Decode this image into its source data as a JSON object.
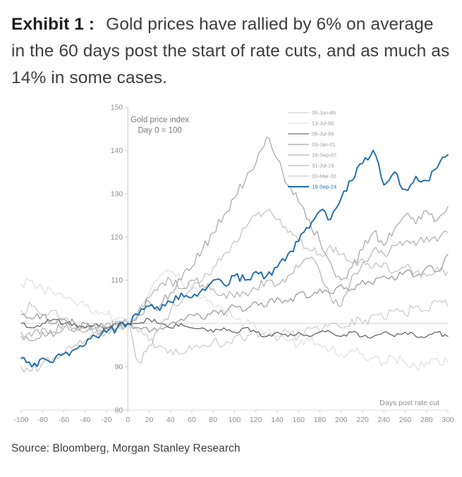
{
  "header": {
    "exhibit_label": "Exhibit 1 :",
    "title_text": "Gold prices have rallied by 6% on average in the 60 days post the start of rate cuts, and as much as 14% in some cases."
  },
  "footer": {
    "source": "Source: Bloomberg, Morgan Stanley Research"
  },
  "chart_data": {
    "type": "line",
    "annotation": [
      "Gold price index",
      "Day 0 = 100"
    ],
    "xlabel": "Days post rate cut",
    "ylabel": "",
    "xlim": [
      -100,
      300
    ],
    "ylim": [
      80,
      150
    ],
    "x_ticks": [
      -100,
      -80,
      -60,
      -40,
      -20,
      0,
      20,
      40,
      60,
      80,
      100,
      120,
      140,
      160,
      180,
      200,
      220,
      240,
      260,
      280,
      300
    ],
    "y_ticks": [
      80,
      90,
      100,
      110,
      120,
      130,
      140,
      150
    ],
    "x_start": -100,
    "x_step": 10,
    "grid": "horizontal reference line at y=100, vertical axis at x=0, baseline at y=80",
    "legend_position": "top-right-inside",
    "axis_color": "#c8c8c8",
    "tick_label_color": "#8e8e8e",
    "series": [
      {
        "name": "05-Jun-89",
        "color": "#c6c6c6",
        "width": 1.1,
        "jitter": 1.2,
        "values": [
          103,
          104,
          102,
          103,
          101,
          100,
          99,
          98,
          99,
          100,
          100,
          98,
          96,
          95,
          94,
          93,
          94,
          95,
          96,
          95,
          97,
          96,
          98,
          97,
          96,
          98,
          97,
          99,
          98,
          100,
          99,
          101,
          100,
          102,
          101,
          103,
          102,
          104,
          103,
          105,
          104
        ]
      },
      {
        "name": "13-Jul-90",
        "color": "#dddddd",
        "width": 1.1,
        "jitter": 1.2,
        "values": [
          109,
          110,
          108,
          107,
          106,
          105,
          104,
          103,
          102,
          101,
          100,
          103,
          107,
          111,
          112,
          110,
          108,
          106,
          104,
          103,
          101,
          100,
          99,
          98,
          97,
          96,
          95,
          96,
          95,
          94,
          93,
          94,
          93,
          92,
          91,
          92,
          91,
          90,
          91,
          92,
          91
        ]
      },
      {
        "name": "06-Jul-95",
        "color": "#4d4d4d",
        "width": 1.1,
        "jitter": 0.5,
        "values": [
          100,
          99,
          100,
          101,
          100,
          100,
          99,
          100,
          99,
          100,
          100,
          100,
          101,
          100,
          99,
          100,
          99,
          99,
          98,
          99,
          98,
          99,
          98,
          97,
          98,
          97,
          98,
          97,
          98,
          98,
          97,
          98,
          97,
          97,
          98,
          97,
          98,
          97,
          97,
          98,
          97
        ]
      },
      {
        "name": "03-Jan-01",
        "color": "#8c8c8c",
        "width": 1.1,
        "jitter": 0.9,
        "values": [
          102,
          101,
          102,
          100,
          101,
          100,
          99,
          100,
          99,
          100,
          100,
          99,
          98,
          99,
          100,
          101,
          102,
          101,
          103,
          102,
          104,
          103,
          105,
          104,
          106,
          105,
          107,
          106,
          108,
          107,
          109,
          108,
          110,
          109,
          111,
          110,
          112,
          111,
          113,
          112,
          116
        ]
      },
      {
        "name": "18-Sep-07",
        "color": "#9e9e9e",
        "width": 1.1,
        "jitter": 1.3,
        "values": [
          97,
          96,
          98,
          97,
          99,
          98,
          100,
          99,
          98,
          99,
          100,
          102,
          105,
          104,
          107,
          110,
          113,
          117,
          121,
          125,
          129,
          133,
          137,
          143,
          138,
          132,
          128,
          124,
          119,
          114,
          110,
          113,
          117,
          121,
          118,
          122,
          125,
          123,
          126,
          124,
          127
        ]
      },
      {
        "name": "31-Jul-19",
        "color": "#a9a9a9",
        "width": 1.1,
        "jitter": 1.1,
        "values": [
          98,
          97,
          99,
          98,
          100,
          99,
          98,
          99,
          100,
          99,
          100,
          103,
          106,
          109,
          110,
          108,
          110,
          109,
          108,
          107,
          106,
          107,
          108,
          110,
          109,
          111,
          113,
          115,
          112,
          106,
          104,
          111,
          114,
          117,
          116,
          118,
          119,
          118,
          120,
          119,
          121
        ]
      },
      {
        "name": "03-Mar-20",
        "color": "#bdbdbd",
        "width": 1.1,
        "jitter": 1.2,
        "values": [
          90,
          89,
          91,
          92,
          93,
          95,
          96,
          97,
          98,
          99,
          100,
          91,
          95,
          99,
          103,
          105,
          108,
          110,
          113,
          116,
          119,
          122,
          125,
          126,
          124,
          121,
          119,
          117,
          116,
          118,
          116,
          114,
          115,
          113,
          114,
          112,
          113,
          112,
          111,
          113,
          112
        ]
      },
      {
        "name": "18-Sep-24",
        "color": "#1f6cab",
        "width": 1.9,
        "jitter": 1.0,
        "values": [
          92,
          90,
          92,
          91,
          93,
          94,
          95,
          97,
          98,
          99,
          100,
          102,
          104,
          103,
          105,
          107,
          106,
          108,
          110,
          109,
          111,
          110,
          112,
          111,
          113,
          116,
          119,
          122,
          126,
          124,
          129,
          133,
          137,
          140,
          132,
          135,
          131,
          134,
          133,
          136,
          139
        ]
      }
    ]
  }
}
